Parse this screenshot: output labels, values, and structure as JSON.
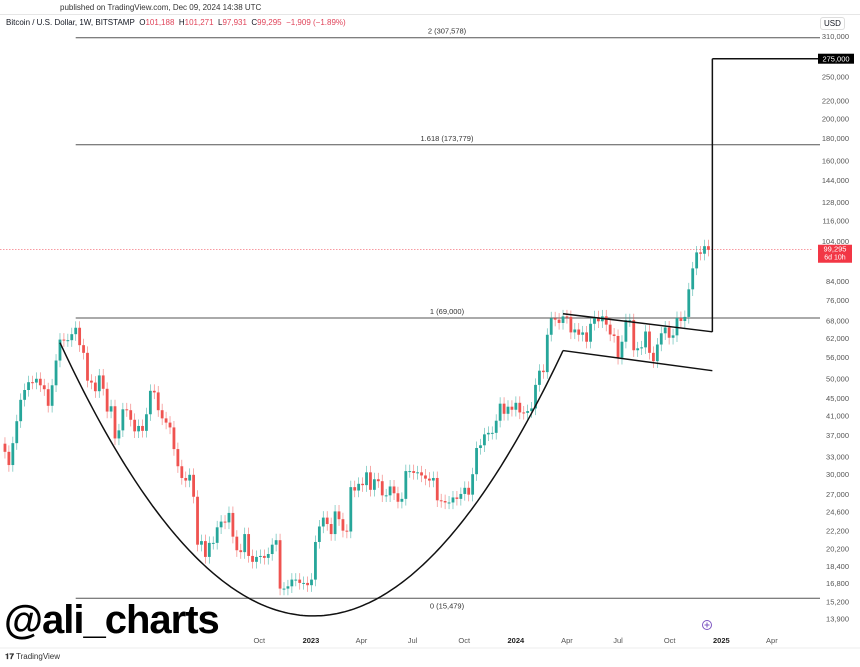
{
  "header": {
    "published": "published on TradingView.com, Dec 09, 2024 14:38 UTC",
    "symbol": "Bitcoin / U.S. Dollar, 1W, BITSTAMP",
    "open_label": "O",
    "open": "101,188",
    "high_label": "H",
    "high": "101,271",
    "low_label": "L",
    "low": "97,931",
    "close_label": "C",
    "close": "99,295",
    "change": "−1,909 (−1.89%)",
    "currency": "USD"
  },
  "watermark": "@ali_charts",
  "footer": {
    "brand": "TradingView",
    "logo_icon": "tradingview-logo-icon"
  },
  "colors": {
    "up": "#26a69a",
    "down": "#ef5350",
    "last_price": "#f23645",
    "target": "#000000"
  },
  "chart_data": {
    "type": "candlestick",
    "interval": "1W",
    "y_scale": "log",
    "ylim": [
      13500,
      320000
    ],
    "start_week": "2021-07-05",
    "first_open": 35300,
    "closes": [
      33800,
      31500,
      35400,
      39800,
      44600,
      47000,
      49000,
      48900,
      49900,
      48200,
      47200,
      43200,
      48200,
      55000,
      61500,
      61300,
      61300,
      63300,
      65500,
      59700,
      57300,
      49400,
      48900,
      46700,
      50800,
      47300,
      41900,
      43100,
      36300,
      37900,
      42400,
      42200,
      40100,
      37700,
      38800,
      37800,
      41300,
      46800,
      46400,
      42200,
      40400,
      39500,
      38500,
      34300,
      31300,
      29400,
      29000,
      29900,
      26600,
      20600,
      21000,
      19300,
      20800,
      20800,
      22600,
      23300,
      23200,
      24400,
      21500,
      20000,
      19800,
      21800,
      19400,
      18800,
      19300,
      19400,
      19200,
      19600,
      20600,
      21100,
      16300,
      16300,
      16500,
      17100,
      17100,
      16800,
      16800,
      16600,
      17100,
      20900,
      22700,
      23800,
      23000,
      21800,
      24600,
      23600,
      22200,
      22100,
      28000,
      27500,
      28500,
      28300,
      30300,
      27600,
      29200,
      28900,
      26800,
      26800,
      28100,
      27100,
      25900,
      26300,
      30500,
      30500,
      30200,
      30300,
      29800,
      29300,
      29000,
      29400,
      26100,
      26000,
      25800,
      25800,
      26500,
      26300,
      27000,
      27900,
      26900,
      30000,
      34500,
      35000,
      37100,
      37400,
      37400,
      39900,
      43700,
      41400,
      43000,
      42300,
      43900,
      41700,
      41600,
      42000,
      42600,
      48300,
      52100,
      51700,
      63100,
      68900,
      68400,
      67200,
      69600,
      69400,
      63900,
      64900,
      63100,
      63900,
      60800,
      66900,
      69300,
      67800,
      69600,
      66600,
      63200,
      62700,
      55800,
      60800,
      68200,
      68200,
      58100,
      58700,
      59000,
      64200,
      57300,
      54800,
      59900,
      63600,
      65600,
      62100,
      62900,
      69000,
      67900,
      69400,
      80400,
      89900,
      97900,
      97200,
      101200,
      99295
    ],
    "y_ticks": [
      "310,000",
      "275,000",
      "250,000",
      "220,000",
      "200,000",
      "180,000",
      "160,000",
      "144,000",
      "128,000",
      "116,000",
      "104,000",
      "84,000",
      "76,000",
      "68,000",
      "62,000",
      "56,000",
      "50,000",
      "45,000",
      "41,000",
      "37,000",
      "33,000",
      "30,000",
      "27,000",
      "24,600",
      "22,200",
      "20,200",
      "18,400",
      "16,800",
      "15,200",
      "13,900"
    ],
    "x_ticks": [
      {
        "label": "Oct",
        "date": "2022-10-01",
        "major": false
      },
      {
        "label": "2023",
        "date": "2023-01-01",
        "major": true
      },
      {
        "label": "Apr",
        "date": "2023-04-01",
        "major": false
      },
      {
        "label": "Jul",
        "date": "2023-07-01",
        "major": false
      },
      {
        "label": "Oct",
        "date": "2023-10-01",
        "major": false
      },
      {
        "label": "2024",
        "date": "2024-01-01",
        "major": true
      },
      {
        "label": "Apr",
        "date": "2024-04-01",
        "major": false
      },
      {
        "label": "Jul",
        "date": "2024-07-01",
        "major": false
      },
      {
        "label": "Oct",
        "date": "2024-10-01",
        "major": false
      },
      {
        "label": "2025",
        "date": "2025-01-01",
        "major": true
      },
      {
        "label": "Apr",
        "date": "2025-04-01",
        "major": false
      }
    ],
    "fib_levels": [
      {
        "label": "2 (307,578)",
        "price": 307578
      },
      {
        "label": "1.618 (173,779)",
        "price": 173779
      },
      {
        "label": "1 (69,000)",
        "price": 69000
      },
      {
        "label": "0 (15,479)",
        "price": 15479
      }
    ],
    "fib_start": "2021-11-08",
    "last_price": {
      "value": 99295,
      "label": "99,295",
      "countdown": "6d 10h"
    },
    "target": {
      "value": 275000,
      "label": "275,000"
    },
    "cup": [
      [
        "2021-10-11",
        60500
      ],
      [
        "2023-01-16",
        14100
      ],
      [
        "2024-03-25",
        58000
      ]
    ],
    "channel_upper": [
      [
        "2024-03-25",
        70600
      ],
      [
        "2024-12-16",
        64100
      ]
    ],
    "channel_lower": [
      [
        "2024-03-25",
        58000
      ],
      [
        "2024-12-16",
        52100
      ]
    ],
    "projection": [
      [
        "2024-12-16",
        64100
      ],
      [
        "2024-12-16",
        275000
      ]
    ]
  }
}
